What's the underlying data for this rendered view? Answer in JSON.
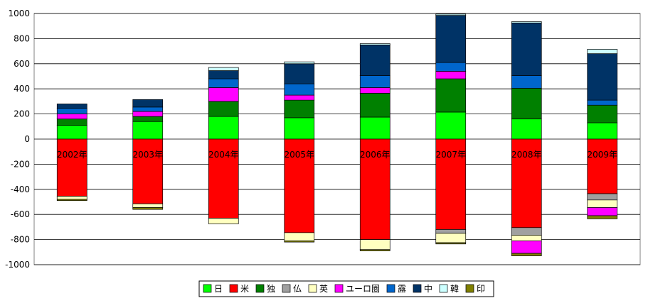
{
  "chart_data": {
    "type": "bar",
    "stacked": true,
    "diverging": true,
    "categories": [
      "2002年",
      "2003年",
      "2004年",
      "2005年",
      "2006年",
      "2007年",
      "2008年",
      "2009年"
    ],
    "ylim": [
      -1000,
      1000
    ],
    "yticks": [
      1000,
      800,
      600,
      400,
      200,
      0,
      -200,
      -400,
      -600,
      -800,
      -1000
    ],
    "grid": true,
    "legend_position": "bottom",
    "series": [
      {
        "name": "日",
        "color": "#00ff00",
        "values": [
          110,
          140,
          180,
          170,
          175,
          215,
          160,
          130
        ]
      },
      {
        "name": "米",
        "color": "#ff0000",
        "values": [
          -455,
          -515,
          -630,
          -745,
          -800,
          -720,
          -705,
          -435
        ]
      },
      {
        "name": "独",
        "color": "#008000",
        "values": [
          50,
          40,
          120,
          140,
          190,
          265,
          245,
          140
        ]
      },
      {
        "name": "仏",
        "color": "#a0a0a0",
        "values": [
          0,
          0,
          0,
          0,
          0,
          -30,
          -60,
          -50
        ]
      },
      {
        "name": "英",
        "color": "#ffffc0",
        "values": [
          -25,
          -30,
          -45,
          -65,
          -80,
          -75,
          -45,
          -60
        ]
      },
      {
        "name": "ユーロ圏",
        "color": "#ff00ff",
        "values": [
          40,
          40,
          110,
          40,
          45,
          60,
          -100,
          -65
        ]
      },
      {
        "name": "露",
        "color": "#0066cc",
        "values": [
          45,
          35,
          70,
          90,
          95,
          70,
          100,
          40
        ]
      },
      {
        "name": "中",
        "color": "#003366",
        "values": [
          35,
          60,
          65,
          160,
          245,
          375,
          420,
          370
        ]
      },
      {
        "name": "韓",
        "color": "#ccffff",
        "values": [
          0,
          0,
          25,
          15,
          10,
          10,
          10,
          35
        ]
      },
      {
        "name": "印",
        "color": "#808000",
        "values": [
          -10,
          -15,
          0,
          -10,
          -10,
          -10,
          -20,
          -25
        ]
      }
    ]
  }
}
